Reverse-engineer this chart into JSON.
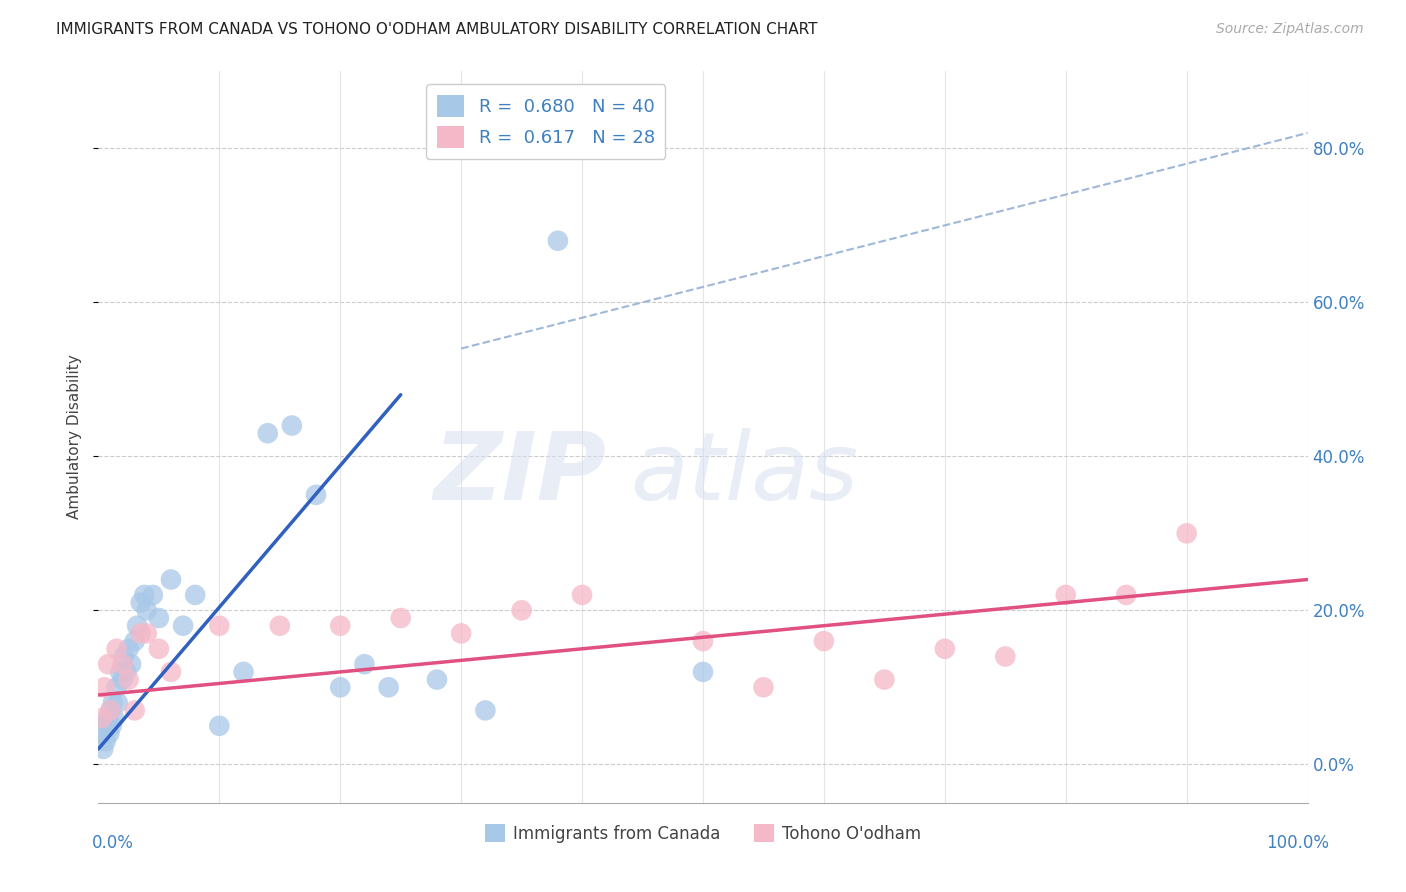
{
  "title": "IMMIGRANTS FROM CANADA VS TOHONO O'ODHAM AMBULATORY DISABILITY CORRELATION CHART",
  "source": "Source: ZipAtlas.com",
  "ylabel": "Ambulatory Disability",
  "xlim": [
    0,
    100
  ],
  "ylim": [
    -5,
    90
  ],
  "yticks": [
    0,
    20,
    40,
    60,
    80
  ],
  "ytick_labels": [
    "0.0%",
    "20.0%",
    "40.0%",
    "60.0%",
    "80.0%"
  ],
  "legend_r1": "R = 0.680",
  "legend_n1": "N = 40",
  "legend_r2": "R = 0.617",
  "legend_n2": "N = 28",
  "color_blue": "#a8c8e8",
  "color_pink": "#f4b8c8",
  "line_blue": "#3060c0",
  "line_pink": "#e05080",
  "line_dash": "#a0b8d8",
  "background": "#ffffff",
  "watermark": "ZIPatlas",
  "canada_x": [
    0.2,
    0.4,
    0.5,
    0.6,
    0.8,
    0.9,
    1.0,
    1.1,
    1.2,
    1.3,
    1.5,
    1.6,
    1.8,
    2.0,
    2.1,
    2.3,
    2.5,
    2.7,
    3.0,
    3.2,
    3.5,
    3.8,
    4.0,
    4.5,
    5.0,
    6.0,
    7.0,
    8.0,
    10.0,
    12.0,
    14.0,
    16.0,
    18.0,
    20.0,
    22.0,
    24.0,
    28.0,
    32.0,
    38.0,
    50.0
  ],
  "canada_y": [
    4,
    2,
    5,
    3,
    6,
    4,
    7,
    5,
    8,
    6,
    10,
    8,
    12,
    11,
    14,
    12,
    15,
    13,
    16,
    18,
    21,
    22,
    20,
    22,
    19,
    24,
    18,
    22,
    5,
    12,
    43,
    44,
    35,
    10,
    13,
    10,
    11,
    7,
    68,
    12
  ],
  "tohono_x": [
    0.3,
    0.5,
    0.8,
    1.0,
    1.5,
    2.0,
    2.5,
    3.0,
    3.5,
    4.0,
    5.0,
    6.0,
    10.0,
    15.0,
    20.0,
    25.0,
    30.0,
    35.0,
    40.0,
    50.0,
    55.0,
    60.0,
    65.0,
    70.0,
    75.0,
    80.0,
    85.0,
    90.0
  ],
  "tohono_y": [
    6,
    10,
    13,
    7,
    15,
    13,
    11,
    7,
    17,
    17,
    15,
    12,
    18,
    18,
    18,
    19,
    17,
    20,
    22,
    16,
    10,
    16,
    11,
    15,
    14,
    22,
    22,
    30
  ],
  "canada_line_x": [
    0,
    25
  ],
  "canada_line_y": [
    2,
    48
  ],
  "tohono_line_x": [
    0,
    100
  ],
  "tohono_line_y": [
    9,
    24
  ],
  "dash_line_x": [
    30,
    100
  ],
  "dash_line_y": [
    54,
    82
  ]
}
